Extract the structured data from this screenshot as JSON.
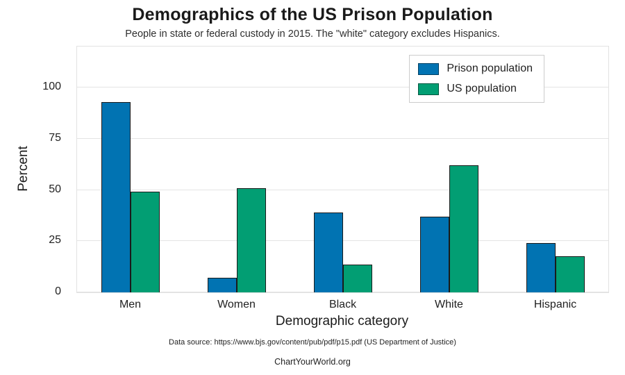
{
  "chart_data": {
    "type": "bar",
    "title": "Demographics of the US Prison Population",
    "subtitle": "People in state or federal custody in 2015. The \"white\" category excludes Hispanics.",
    "categories": [
      "Men",
      "Women",
      "Black",
      "White",
      "Hispanic"
    ],
    "series": [
      {
        "name": "Prison population",
        "color": "#0173b2",
        "values": [
          93,
          7,
          39,
          37,
          24
        ]
      },
      {
        "name": "US population",
        "color": "#029e73",
        "values": [
          49,
          51,
          13.5,
          62,
          17.5
        ]
      }
    ],
    "xlabel": "Demographic category",
    "ylabel": "Percent",
    "yticks": [
      0,
      25,
      50,
      75,
      100
    ],
    "ylim": [
      0,
      120
    ],
    "grid": true,
    "legend_position": "upper right",
    "footnote": "Data source: https://www.bjs.gov/content/pub/pdf/p15.pdf (US Department of Justice)",
    "credit": "ChartYourWorld.org"
  }
}
